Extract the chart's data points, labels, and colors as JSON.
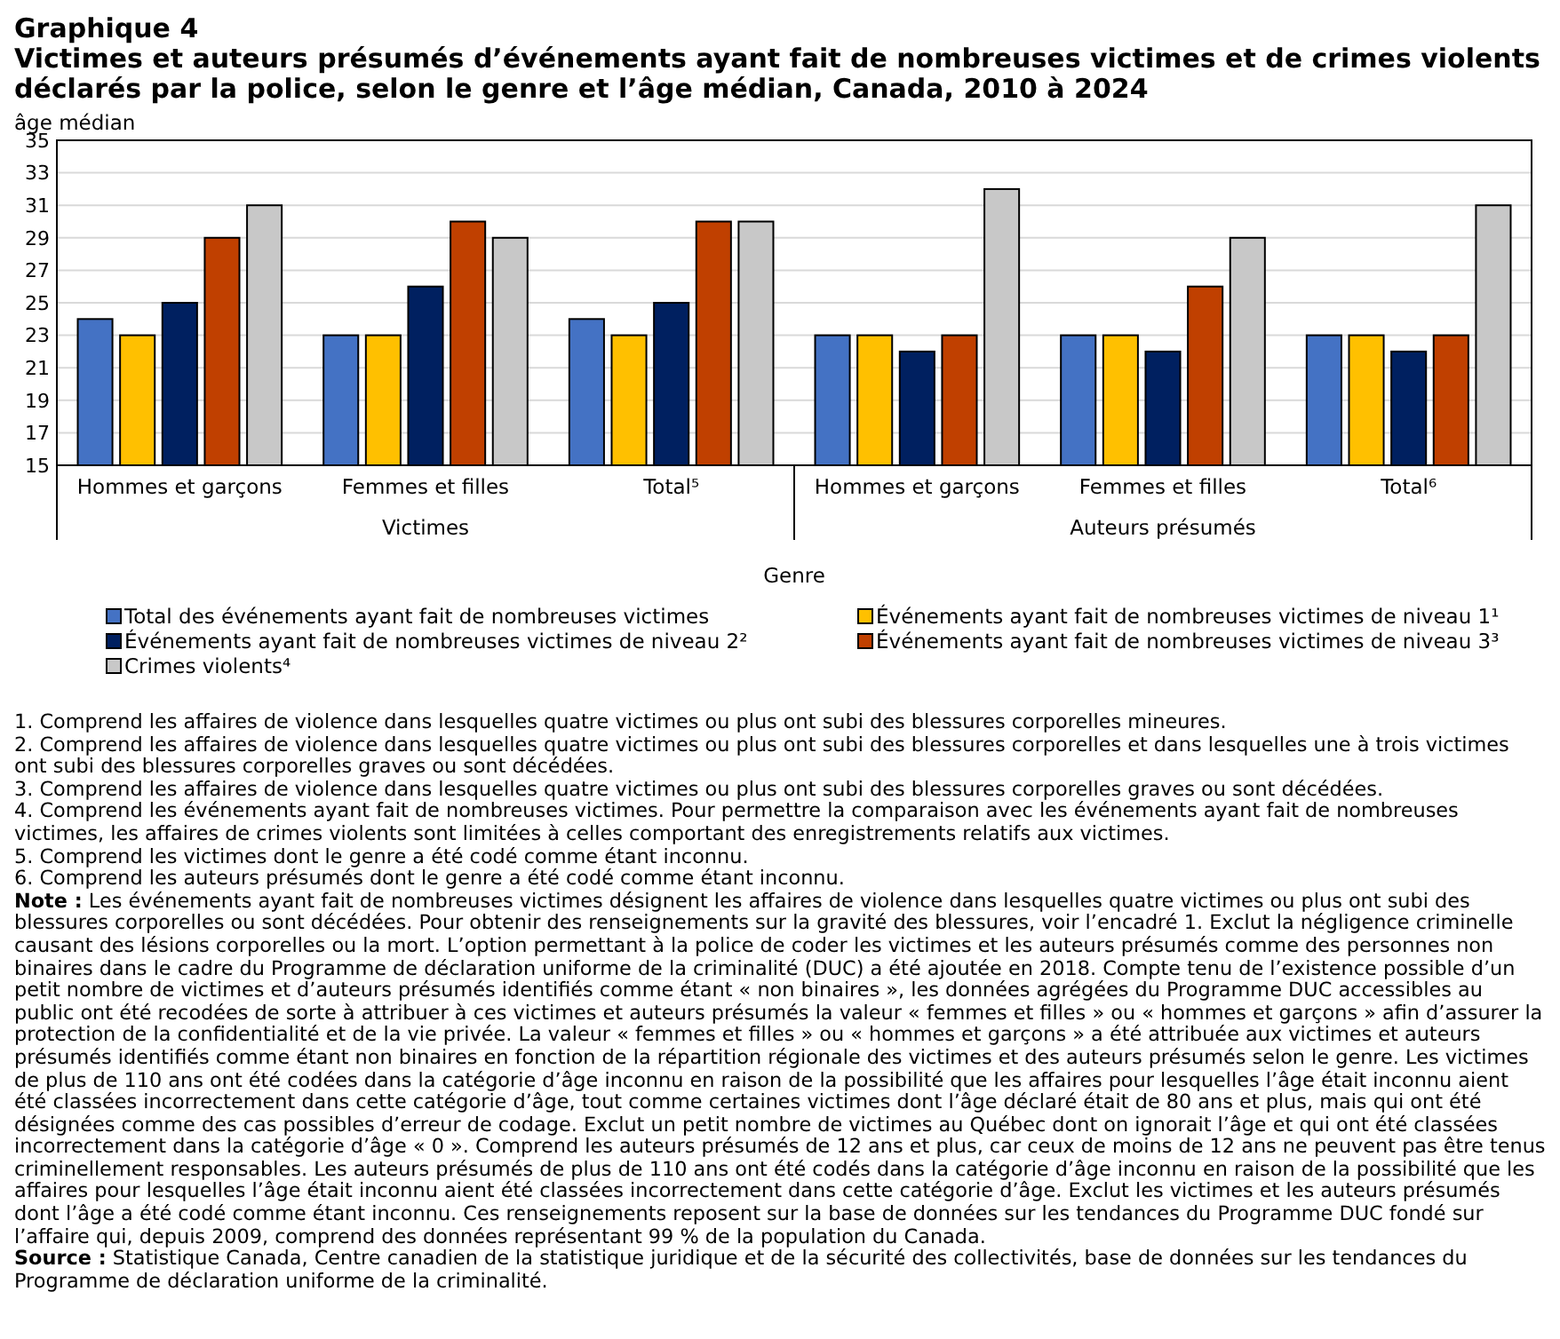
{
  "chart_data": {
    "type": "bar",
    "title": "Graphique 4",
    "subtitle": "Victimes et auteurs présumés d’événements ayant fait de nombreuses victimes et de crimes violents déclarés par la police, selon le genre et l’âge médian, Canada, 2010 à 2024",
    "ylabel": "âge médian",
    "xlabel": "Genre",
    "categories": [
      "Hommes et garçons",
      "Femmes et filles",
      "Total⁵",
      "Hommes et garçons",
      "Femmes et filles",
      "Total⁶"
    ],
    "series": [
      {
        "name": "Total des événements ayant fait de nombreuses victimes",
        "color": "#4472c4",
        "values": [
          24,
          23,
          24,
          23,
          23,
          23
        ]
      },
      {
        "name": "Événements ayant fait de nombreuses victimes de niveau 1¹",
        "color": "#ffc000",
        "values": [
          23,
          23,
          23,
          23,
          23,
          23
        ]
      },
      {
        "name": "Événements ayant fait de nombreuses victimes de niveau 2²",
        "color": "#002060",
        "values": [
          25,
          26,
          25,
          22,
          22,
          22
        ]
      },
      {
        "name": "Événements ayant fait de nombreuses victimes de niveau 3³",
        "color": "#c04000",
        "values": [
          29,
          30,
          30,
          23,
          26,
          23
        ]
      },
      {
        "name": "Crimes violents⁴",
        "color": "#c8c8c8",
        "values": [
          31,
          29,
          30,
          32,
          29,
          31
        ]
      }
    ],
    "ylim": [
      15,
      35
    ],
    "yticks": [
      15,
      17,
      19,
      21,
      23,
      25,
      27,
      29,
      31,
      33,
      35
    ],
    "grid": "y",
    "legend": "bottom",
    "annotations": [
      "Victimes",
      "Auteurs présumés",
      "1. Comprend les affaires de violence dans lesquelles quatre victimes ou plus ont subi des blessures corporelles mineures.",
      "2. Comprend les affaires de violence dans lesquelles quatre victimes ou plus ont subi des blessures corporelles et dans lesquelles une à trois victimes ont subi des blessures corporelles graves ou sont décédées.",
      "3. Comprend les affaires de violence dans lesquelles quatre victimes ou plus ont subi des blessures corporelles graves ou sont décédées.",
      "4. Comprend les événements ayant fait de nombreuses victimes. Pour permettre la comparaison avec les événements ayant fait de nombreuses victimes, les affaires de crimes violents sont limitées à celles comportant des enregistrements relatifs aux victimes.",
      "5. Comprend les victimes dont le genre a été codé comme étant inconnu.",
      "6. Comprend les auteurs présumés dont le genre a été codé comme étant inconnu.",
      "Note : Les événements ayant fait de nombreuses victimes désignent les affaires de violence dans lesquelles quatre victimes ou plus ont subi des blessures corporelles ou sont décédées. Pour obtenir des renseignements sur la gravité des blessures, voir l’encadré 1. Exclut la négligence criminelle causant des lésions corporelles ou la mort. L’option permettant à la police de coder les victimes et les auteurs présumés comme des personnes non binaires dans le cadre du Programme de déclaration uniforme de la criminalité (DUC) a été ajoutée en 2018. Compte tenu de l’existence possible d’un petit nombre de victimes et d’auteurs présumés identifiés comme étant « non binaires », les données agrégées du Programme DUC accessibles au public ont été recodées de sorte à attribuer à ces victimes et auteurs présumés la valeur « femmes et filles » ou « hommes et garçons » afin d’assurer la protection de la confidentialité et de la vie privée. La valeur « femmes et filles » ou « hommes et garçons » a été attribuée aux victimes et auteurs présumés identifiés comme étant non binaires en fonction de la répartition régionale des victimes et des auteurs présumés selon le genre. Les victimes de plus de 110 ans ont été codées dans la catégorie d’âge inconnu en raison de la possibilité que les affaires pour lesquelles l’âge était inconnu aient été classées incorrectement dans cette catégorie d’âge, tout comme certaines victimes dont l’âge déclaré était de 80 ans et plus, mais qui ont été désignées comme des cas possibles d’erreur de codage. Exclut un petit nombre de victimes au Québec dont on ignorait l’âge et qui ont été classées incorrectement dans la catégorie d’âge « 0 ». Comprend les auteurs présumés de 12 ans et plus, car ceux de moins de 12 ans ne peuvent pas être tenus criminellement responsables. Les auteurs présumés de plus de 110 ans ont été codés dans la catégorie d’âge inconnu en raison de la possibilité que les affaires pour lesquelles l’âge était inconnu aient été classées incorrectement dans cette catégorie d’âge. Exclut les victimes et les auteurs présumés dont l’âge a été codé comme étant inconnu. Ces renseignements reposent sur la base de données sur les tendances du Programme DUC fondé sur l’affaire qui, depuis 2009, comprend des données représentant 99 % de la population du Canada.",
      "Source : Statistique Canada, Centre canadien de la statistique juridique et de la sécurité des collectivités, base de données sur les tendances du Programme de déclaration uniforme de la criminalité."
    ]
  }
}
